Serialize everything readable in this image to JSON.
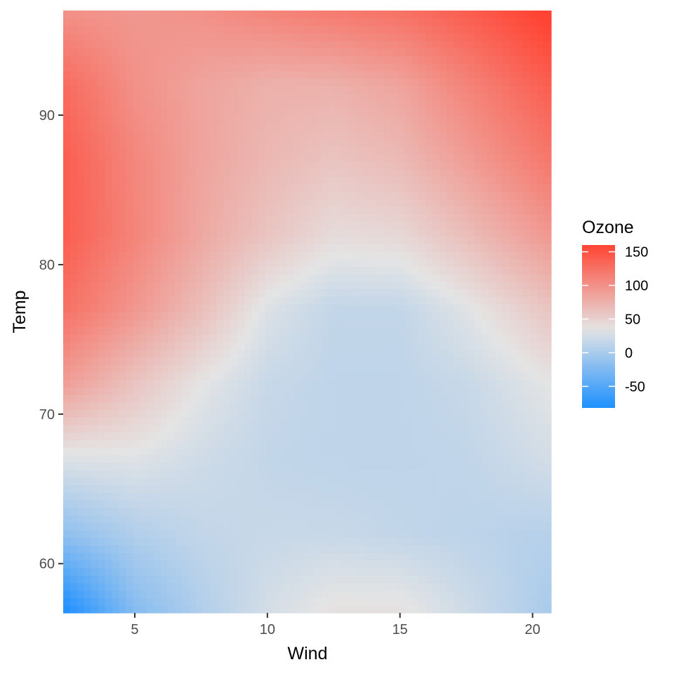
{
  "chart_data": {
    "type": "heatmap",
    "title": "",
    "xlabel": "Wind",
    "ylabel": "Temp",
    "xlim": [
      2.3,
      20.7
    ],
    "ylim": [
      56.7,
      97.0
    ],
    "x_ticks": [
      5,
      10,
      15,
      20
    ],
    "y_ticks": [
      60,
      70,
      80,
      90
    ],
    "grid": false,
    "colorbar": {
      "title": "Ozone",
      "range": [
        -82,
        160
      ],
      "ticks": [
        -50,
        0,
        50,
        100,
        150
      ],
      "stops": [
        {
          "value": -82,
          "color": "#1E90FF"
        },
        {
          "value": 35,
          "color": "#E4E4E4"
        },
        {
          "value": 160,
          "color": "#FF4433"
        }
      ],
      "placement": "right"
    },
    "surface_samples": {
      "wind": [
        2.3,
        5,
        7.5,
        10,
        12.5,
        15,
        17.5,
        20.7
      ],
      "temp": [
        57,
        62,
        67,
        72,
        77,
        82,
        87,
        92,
        97
      ],
      "ozone": [
        [
          -82,
          -20,
          5,
          25,
          38,
          38,
          22,
          0
        ],
        [
          -15,
          5,
          15,
          18,
          18,
          15,
          12,
          8
        ],
        [
          30,
          32,
          22,
          15,
          13,
          13,
          14,
          25
        ],
        [
          90,
          60,
          35,
          18,
          13,
          13,
          18,
          35
        ],
        [
          125,
          95,
          65,
          30,
          15,
          15,
          32,
          60
        ],
        [
          140,
          110,
          82,
          60,
          42,
          45,
          65,
          95
        ],
        [
          140,
          108,
          85,
          70,
          60,
          68,
          90,
          120
        ],
        [
          130,
          100,
          85,
          75,
          75,
          85,
          110,
          140
        ],
        [
          100,
          95,
          100,
          110,
          118,
          125,
          140,
          165
        ]
      ]
    }
  }
}
